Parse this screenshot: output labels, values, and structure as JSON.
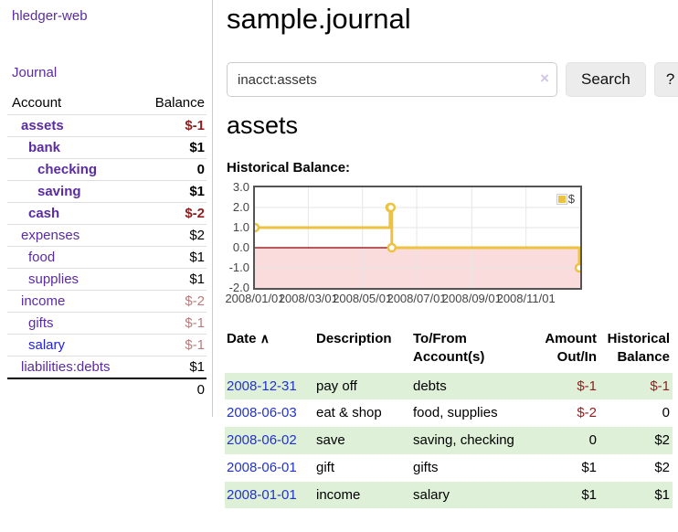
{
  "app": {
    "title": "hledger-web",
    "nav_journal": "Journal"
  },
  "sidebar": {
    "columns": {
      "account": "Account",
      "balance": "Balance"
    },
    "accounts": [
      {
        "label": "assets",
        "balance": "$-1",
        "indent": 1,
        "bold": true,
        "amount_class": "neg-strong"
      },
      {
        "label": "bank",
        "balance": "$1",
        "indent": 2,
        "bold": true,
        "amount_class": ""
      },
      {
        "label": "checking",
        "balance": "0",
        "indent": 3,
        "bold": true,
        "amount_class": ""
      },
      {
        "label": "saving",
        "balance": "$1",
        "indent": 3,
        "bold": true,
        "amount_class": ""
      },
      {
        "label": "cash",
        "balance": "$-2",
        "indent": 2,
        "bold": true,
        "amount_class": "neg-strong"
      },
      {
        "label": "expenses",
        "balance": "$2",
        "indent": 1,
        "bold": false,
        "amount_class": ""
      },
      {
        "label": "food",
        "balance": "$1",
        "indent": 2,
        "bold": false,
        "amount_class": ""
      },
      {
        "label": "supplies",
        "balance": "$1",
        "indent": 2,
        "bold": false,
        "amount_class": ""
      },
      {
        "label": "income",
        "balance": "$-2",
        "indent": 1,
        "bold": false,
        "amount_class": "neg-soft"
      },
      {
        "label": "gifts",
        "balance": "$-1",
        "indent": 2,
        "bold": false,
        "amount_class": "neg-soft"
      },
      {
        "label": "salary",
        "balance": "$-1",
        "indent": 2,
        "bold": false,
        "amount_class": "neg-soft",
        "link_color": "blue"
      },
      {
        "label": "liabilities:debts",
        "balance": "$1",
        "indent": 1,
        "bold": false,
        "amount_class": ""
      }
    ],
    "total": "0"
  },
  "header": {
    "title": "sample.journal"
  },
  "search": {
    "value": "inacct:assets",
    "clear_icon": "×",
    "button_label": "Search",
    "help_label": "?"
  },
  "account_page": {
    "title": "assets",
    "chart_label": "Historical Balance:"
  },
  "chart_data": {
    "type": "line",
    "step": true,
    "title": "Historical Balance",
    "series": [
      {
        "name": "$",
        "color": "#edc240",
        "points": [
          [
            "2008-01-01",
            1
          ],
          [
            "2008-06-01",
            2
          ],
          [
            "2008-06-02",
            2
          ],
          [
            "2008-06-03",
            0
          ],
          [
            "2008-12-31",
            -1
          ]
        ]
      }
    ],
    "x_ticks": [
      "2008/01/01",
      "2008/03/01",
      "2008/05/01",
      "2008/07/01",
      "2008/09/01",
      "2008/11/01"
    ],
    "y_ticks": [
      "3.0",
      "2.0",
      "1.0",
      "0.0",
      "-1.0",
      "-2.0"
    ],
    "ylim": [
      -2,
      3
    ],
    "xlim_days": 366,
    "legend": "$",
    "legend_position": "top-right",
    "grid": true,
    "colors": {
      "line": "#edc240",
      "negative_region": "#fbdcdc",
      "zero_line": "#8b0000",
      "gridline": "#e6e6e6"
    }
  },
  "register": {
    "headers": {
      "date": "Date",
      "sort_arrow": "∧",
      "description": "Description",
      "accounts": "To/From Account(s)",
      "amount": "Amount Out/In",
      "balance": "Historical Balance"
    },
    "rows": [
      {
        "date": "2008-12-31",
        "description": "pay off",
        "accounts": "debts",
        "amount": "$-1",
        "amount_neg": true,
        "balance": "$-1",
        "balance_neg": true
      },
      {
        "date": "2008-06-03",
        "description": "eat & shop",
        "accounts": "food, supplies",
        "amount": "$-2",
        "amount_neg": true,
        "balance": "0",
        "balance_neg": false
      },
      {
        "date": "2008-06-02",
        "description": "save",
        "accounts": "saving, checking",
        "amount": "0",
        "amount_neg": false,
        "balance": "$2",
        "balance_neg": false
      },
      {
        "date": "2008-06-01",
        "description": "gift",
        "accounts": "gifts",
        "amount": "$1",
        "amount_neg": false,
        "balance": "$2",
        "balance_neg": false
      },
      {
        "date": "2008-01-01",
        "description": "income",
        "accounts": "salary",
        "amount": "$1",
        "amount_neg": false,
        "balance": "$1",
        "balance_neg": false
      }
    ]
  }
}
